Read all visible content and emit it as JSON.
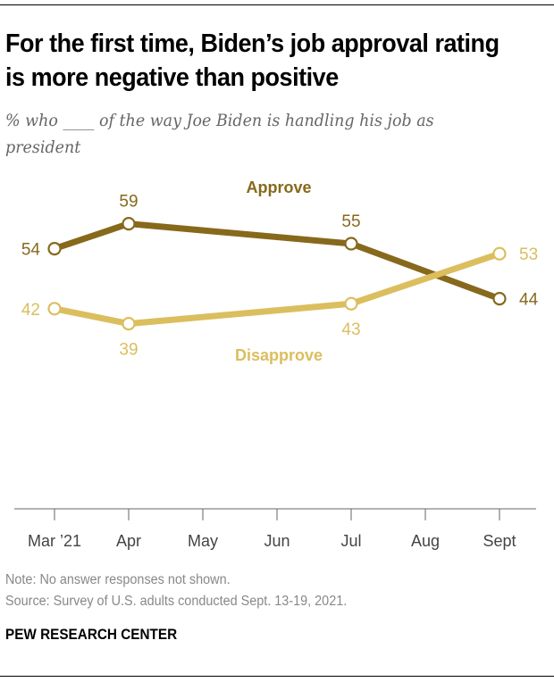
{
  "header": {
    "title": "For the first time, Biden’s job approval rating is more negative than positive",
    "subtitle": "% who ____ of the way Joe Biden is handling his job as president"
  },
  "footer": {
    "note": "Note: No answer responses not shown.",
    "source": "Source: Survey of U.S. adults conducted Sept. 13-19, 2021.",
    "brand": "PEW RESEARCH CENTER"
  },
  "colors": {
    "approve": "#87691C",
    "disapprove": "#DBBE5E",
    "axis": "#666666",
    "tick_label": "#444444"
  },
  "chart_data": {
    "type": "line",
    "title": "For the first time, Biden’s job approval rating is more negative than positive",
    "subtitle": "% who ____ of the way Joe Biden is handling his job as president",
    "xlabel": "",
    "ylabel": "",
    "x_ticks": [
      "Mar ’21",
      "Apr",
      "May",
      "Jun",
      "Jul",
      "Aug",
      "Sept"
    ],
    "grid": false,
    "legend": "inline labels",
    "ylim": [
      0,
      100
    ],
    "series": [
      {
        "name": "Approve",
        "color": "#87691C",
        "points": [
          {
            "x": "Mar ’21",
            "y": 54
          },
          {
            "x": "Apr",
            "y": 59
          },
          {
            "x": "Jul",
            "y": 55
          },
          {
            "x": "Sept",
            "y": 44
          }
        ]
      },
      {
        "name": "Disapprove",
        "color": "#DBBE5E",
        "points": [
          {
            "x": "Mar ’21",
            "y": 42
          },
          {
            "x": "Apr",
            "y": 39
          },
          {
            "x": "Jul",
            "y": 43
          },
          {
            "x": "Sept",
            "y": 53
          }
        ]
      }
    ]
  }
}
